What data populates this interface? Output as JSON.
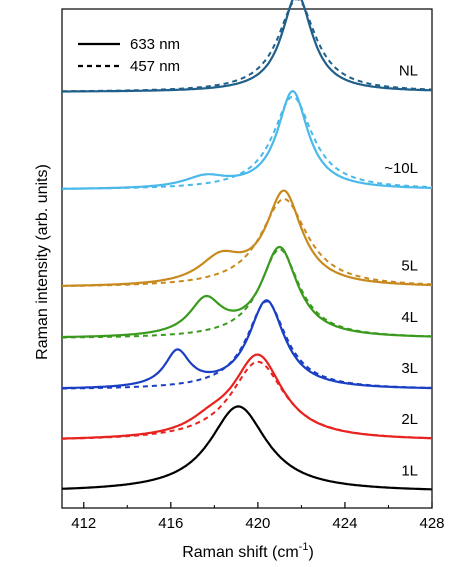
{
  "chart_data": {
    "type": "line",
    "xlabel": "Raman shift (cm",
    "xlabel_sup": "-1",
    "xlabel_close": ")",
    "ylabel": "Raman intensity (arb. units)",
    "xlim": [
      411,
      428
    ],
    "xticks": [
      412,
      416,
      420,
      424,
      428
    ],
    "xtick_labels": [
      "412",
      "416",
      "420",
      "424",
      "428"
    ],
    "yticks_shown": false,
    "legend": {
      "position": "top-left",
      "entries": [
        {
          "label": "633 nm",
          "style": "solid"
        },
        {
          "label": "457 nm",
          "style": "dashed"
        }
      ]
    },
    "y_units_note": "arbitrary units; curves vertically offset",
    "series": [
      {
        "name": "1L",
        "color": "#000000",
        "offset": 0,
        "solid": {
          "peaks": [
            {
              "center": 419.1,
              "height": 0.92,
              "width": 1.6
            }
          ]
        },
        "dashed": null
      },
      {
        "name": "2L",
        "color": "#e8221e",
        "offset": 0.55,
        "solid": {
          "peaks": [
            {
              "center": 420.0,
              "height": 0.9,
              "width": 1.4
            },
            {
              "center": 417.8,
              "height": 0.12,
              "width": 1.2
            }
          ]
        },
        "dashed": {
          "peaks": [
            {
              "center": 420.0,
              "height": 0.85,
              "width": 1.5
            }
          ]
        }
      },
      {
        "name": "3L",
        "color": "#1a3ec4",
        "offset": 1.1,
        "solid": {
          "peaks": [
            {
              "center": 420.4,
              "height": 0.95,
              "width": 1.0
            },
            {
              "center": 416.3,
              "height": 0.38,
              "width": 0.7
            }
          ]
        },
        "dashed": {
          "peaks": [
            {
              "center": 420.4,
              "height": 0.95,
              "width": 1.1
            }
          ]
        }
      },
      {
        "name": "4L",
        "color": "#3a9a1e",
        "offset": 1.65,
        "solid": {
          "peaks": [
            {
              "center": 421.0,
              "height": 0.96,
              "width": 1.0
            },
            {
              "center": 417.6,
              "height": 0.38,
              "width": 0.9
            }
          ]
        },
        "dashed": {
          "peaks": [
            {
              "center": 421.0,
              "height": 0.96,
              "width": 1.1
            }
          ]
        }
      },
      {
        "name": "5L",
        "color": "#c88a1e",
        "offset": 2.2,
        "solid": {
          "peaks": [
            {
              "center": 421.2,
              "height": 1.0,
              "width": 1.0
            },
            {
              "center": 418.3,
              "height": 0.28,
              "width": 1.2
            }
          ]
        },
        "dashed": {
          "peaks": [
            {
              "center": 421.2,
              "height": 0.95,
              "width": 1.3
            }
          ]
        }
      },
      {
        "name": "~10L",
        "color": "#4ab9ea",
        "offset": 3.25,
        "solid": {
          "peaks": [
            {
              "center": 421.6,
              "height": 1.05,
              "width": 0.85
            },
            {
              "center": 417.6,
              "height": 0.12,
              "width": 1.2
            }
          ]
        },
        "dashed": {
          "peaks": [
            {
              "center": 421.6,
              "height": 1.0,
              "width": 1.1
            }
          ]
        }
      },
      {
        "name": "NL",
        "color": "#1f5f8a",
        "offset": 4.3,
        "solid": {
          "peaks": [
            {
              "center": 421.8,
              "height": 1.05,
              "width": 0.85
            }
          ]
        },
        "dashed": {
          "peaks": [
            {
              "center": 421.8,
              "height": 1.0,
              "width": 1.05
            }
          ]
        }
      }
    ]
  }
}
